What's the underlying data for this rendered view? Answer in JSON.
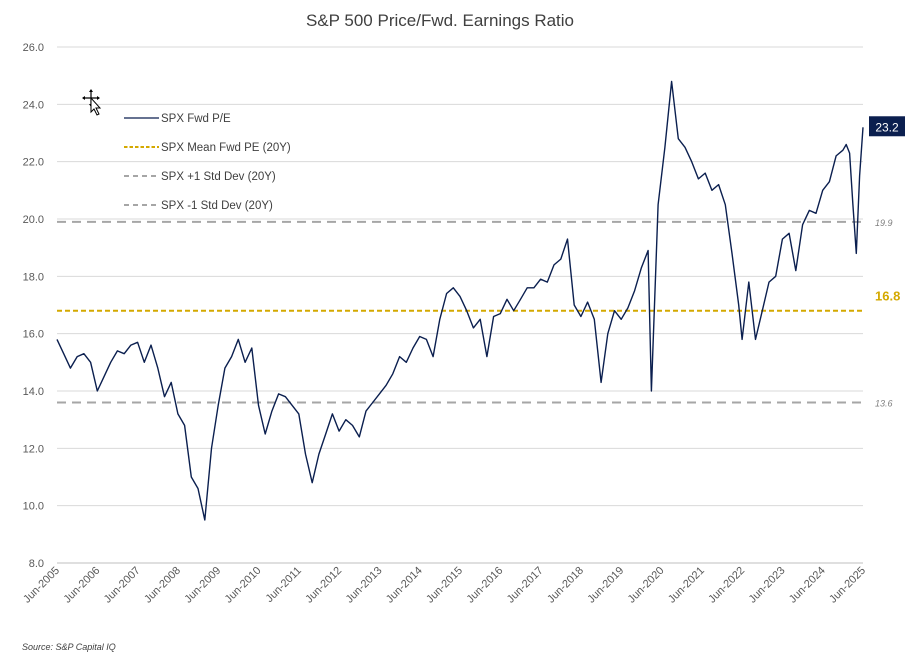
{
  "chart_data": {
    "type": "line",
    "title": "S&P 500 Price/Fwd. Earnings Ratio",
    "source": "Source: S&P Capital IQ",
    "ylim": [
      8,
      26
    ],
    "yticks": [
      "8.0",
      "10.0",
      "12.0",
      "14.0",
      "16.0",
      "18.0",
      "20.0",
      "22.0",
      "24.0",
      "26.0"
    ],
    "xticks": [
      "Jun-2005",
      "Jun-2006",
      "Jun-2007",
      "Jun-2008",
      "Jun-2009",
      "Jun-2010",
      "Jun-2011",
      "Jun-2012",
      "Jun-2013",
      "Jun-2014",
      "Jun-2015",
      "Jun-2016",
      "Jun-2017",
      "Jun-2018",
      "Jun-2019",
      "Jun-2020",
      "Jun-2021",
      "Jun-2022",
      "Jun-2023",
      "Jun-2024",
      "Jun-2025"
    ],
    "grid": true,
    "legend_position": "top-left",
    "series": [
      {
        "name": "SPX Fwd P/E",
        "color": "#0b1f4f",
        "style": "solid",
        "points": [
          [
            "2005-06",
            15.8
          ],
          [
            "2005-08",
            15.3
          ],
          [
            "2005-10",
            14.8
          ],
          [
            "2005-12",
            15.2
          ],
          [
            "2006-02",
            15.3
          ],
          [
            "2006-04",
            15.0
          ],
          [
            "2006-06",
            14.0
          ],
          [
            "2006-08",
            14.5
          ],
          [
            "2006-10",
            15.0
          ],
          [
            "2006-12",
            15.4
          ],
          [
            "2007-02",
            15.3
          ],
          [
            "2007-04",
            15.6
          ],
          [
            "2007-06",
            15.7
          ],
          [
            "2007-08",
            15.0
          ],
          [
            "2007-10",
            15.6
          ],
          [
            "2007-12",
            14.8
          ],
          [
            "2008-02",
            13.8
          ],
          [
            "2008-04",
            14.3
          ],
          [
            "2008-06",
            13.2
          ],
          [
            "2008-08",
            12.8
          ],
          [
            "2008-10",
            11.0
          ],
          [
            "2008-12",
            10.6
          ],
          [
            "2009-02",
            9.5
          ],
          [
            "2009-04",
            12.0
          ],
          [
            "2009-06",
            13.5
          ],
          [
            "2009-08",
            14.8
          ],
          [
            "2009-10",
            15.2
          ],
          [
            "2009-12",
            15.8
          ],
          [
            "2010-02",
            15.0
          ],
          [
            "2010-04",
            15.5
          ],
          [
            "2010-06",
            13.5
          ],
          [
            "2010-08",
            12.5
          ],
          [
            "2010-10",
            13.3
          ],
          [
            "2010-12",
            13.9
          ],
          [
            "2011-02",
            13.8
          ],
          [
            "2011-04",
            13.5
          ],
          [
            "2011-06",
            13.2
          ],
          [
            "2011-08",
            11.8
          ],
          [
            "2011-10",
            10.8
          ],
          [
            "2011-12",
            11.8
          ],
          [
            "2012-02",
            12.5
          ],
          [
            "2012-04",
            13.2
          ],
          [
            "2012-06",
            12.6
          ],
          [
            "2012-08",
            13.0
          ],
          [
            "2012-10",
            12.8
          ],
          [
            "2012-12",
            12.4
          ],
          [
            "2013-02",
            13.3
          ],
          [
            "2013-04",
            13.6
          ],
          [
            "2013-06",
            13.9
          ],
          [
            "2013-08",
            14.2
          ],
          [
            "2013-10",
            14.6
          ],
          [
            "2013-12",
            15.2
          ],
          [
            "2014-02",
            15.0
          ],
          [
            "2014-04",
            15.5
          ],
          [
            "2014-06",
            15.9
          ],
          [
            "2014-08",
            15.8
          ],
          [
            "2014-10",
            15.2
          ],
          [
            "2014-12",
            16.5
          ],
          [
            "2015-02",
            17.4
          ],
          [
            "2015-04",
            17.6
          ],
          [
            "2015-06",
            17.3
          ],
          [
            "2015-08",
            16.8
          ],
          [
            "2015-10",
            16.2
          ],
          [
            "2015-12",
            16.5
          ],
          [
            "2016-02",
            15.2
          ],
          [
            "2016-04",
            16.6
          ],
          [
            "2016-06",
            16.7
          ],
          [
            "2016-08",
            17.2
          ],
          [
            "2016-10",
            16.8
          ],
          [
            "2016-12",
            17.2
          ],
          [
            "2017-02",
            17.6
          ],
          [
            "2017-04",
            17.6
          ],
          [
            "2017-06",
            17.9
          ],
          [
            "2017-08",
            17.8
          ],
          [
            "2017-10",
            18.4
          ],
          [
            "2017-12",
            18.6
          ],
          [
            "2018-02",
            19.3
          ],
          [
            "2018-04",
            17.0
          ],
          [
            "2018-06",
            16.6
          ],
          [
            "2018-08",
            17.1
          ],
          [
            "2018-10",
            16.5
          ],
          [
            "2018-12",
            14.3
          ],
          [
            "2019-02",
            16.0
          ],
          [
            "2019-04",
            16.8
          ],
          [
            "2019-06",
            16.5
          ],
          [
            "2019-08",
            16.9
          ],
          [
            "2019-10",
            17.5
          ],
          [
            "2019-12",
            18.3
          ],
          [
            "2020-02",
            18.9
          ],
          [
            "2020-03",
            14.0
          ],
          [
            "2020-05",
            20.5
          ],
          [
            "2020-07",
            22.5
          ],
          [
            "2020-09",
            24.8
          ],
          [
            "2020-11",
            22.8
          ],
          [
            "2021-01",
            22.5
          ],
          [
            "2021-03",
            22.0
          ],
          [
            "2021-05",
            21.4
          ],
          [
            "2021-07",
            21.6
          ],
          [
            "2021-09",
            21.0
          ],
          [
            "2021-11",
            21.2
          ],
          [
            "2022-01",
            20.5
          ],
          [
            "2022-03",
            18.8
          ],
          [
            "2022-05",
            17.0
          ],
          [
            "2022-06",
            15.8
          ],
          [
            "2022-08",
            17.8
          ],
          [
            "2022-10",
            15.8
          ],
          [
            "2022-12",
            16.8
          ],
          [
            "2023-02",
            17.8
          ],
          [
            "2023-04",
            18.0
          ],
          [
            "2023-06",
            19.3
          ],
          [
            "2023-08",
            19.5
          ],
          [
            "2023-10",
            18.2
          ],
          [
            "2023-12",
            19.8
          ],
          [
            "2024-02",
            20.3
          ],
          [
            "2024-04",
            20.2
          ],
          [
            "2024-06",
            21.0
          ],
          [
            "2024-08",
            21.3
          ],
          [
            "2024-10",
            22.2
          ],
          [
            "2024-12",
            22.4
          ],
          [
            "2025-01",
            22.6
          ],
          [
            "2025-02",
            22.3
          ],
          [
            "2025-03",
            20.5
          ],
          [
            "2025-04",
            18.8
          ],
          [
            "2025-05",
            21.5
          ],
          [
            "2025-06",
            23.2
          ]
        ]
      },
      {
        "name": "SPX Mean Fwd PE (20Y)",
        "color": "#d4a900",
        "style": "dashed",
        "value": 16.8,
        "label": "16.8"
      },
      {
        "name": "SPX +1 Std Dev (20Y)",
        "color": "#a6a6a6",
        "style": "long-dash",
        "value": 19.9,
        "label": "19.9"
      },
      {
        "name": "SPX -1 Std Dev (20Y)",
        "color": "#a6a6a6",
        "style": "long-dash",
        "value": 13.6,
        "label": "13.6"
      }
    ],
    "last_value_label": "23.2"
  }
}
